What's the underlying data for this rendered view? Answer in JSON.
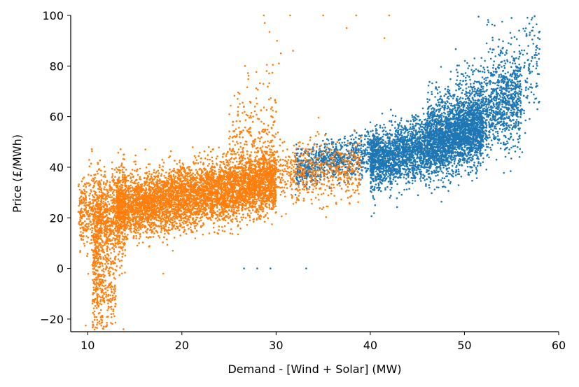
{
  "chart_data": {
    "type": "scatter",
    "title": "",
    "xlabel": "Demand - [Wind + Solar] (MW)",
    "ylabel": "Price (£/MWh)",
    "xlim": [
      8.2,
      60
    ],
    "ylim": [
      -25,
      100
    ],
    "xticks": [
      10,
      20,
      30,
      40,
      50,
      60
    ],
    "yticks": [
      -20,
      0,
      20,
      40,
      60,
      80,
      100
    ],
    "grid": false,
    "legend": "none",
    "series": [
      {
        "color": "#1f77b4",
        "clusters": [
          {
            "n": 3200,
            "x_range": [
              40,
              52
            ],
            "y_center": 48,
            "y_slope": 1.1,
            "y_spread": 6
          },
          {
            "n": 1800,
            "x_range": [
              46,
              56
            ],
            "y_center": 60,
            "y_slope": 1.6,
            "y_spread": 9
          },
          {
            "n": 900,
            "x_range": [
              32,
              41
            ],
            "y_center": 43,
            "y_slope": 0.8,
            "y_spread": 4
          },
          {
            "n": 300,
            "x_range": [
              52,
              58
            ],
            "y_center": 75,
            "y_slope": 3.0,
            "y_spread": 12
          }
        ],
        "points": [
          [
            26.6,
            0
          ],
          [
            28.0,
            0
          ],
          [
            29.4,
            0
          ],
          [
            33.2,
            0
          ],
          [
            51.5,
            99.5
          ],
          [
            52.5,
            98.2
          ],
          [
            54.0,
            97.5
          ],
          [
            55.0,
            99.0
          ],
          [
            53.2,
            96.0
          ],
          [
            56.6,
            92.0
          ],
          [
            57.2,
            90.5
          ],
          [
            55.8,
            94.0
          ],
          [
            57.5,
            67.0
          ],
          [
            56.0,
            62.0
          ]
        ]
      },
      {
        "color": "#ff7f0e",
        "clusters": [
          {
            "n": 5200,
            "x_range": [
              13,
              30
            ],
            "y_center": 29,
            "y_slope": 0.65,
            "y_spread": 6
          },
          {
            "n": 900,
            "x_range": [
              10.5,
              14
            ],
            "y_center": 18,
            "y_slope": 3.0,
            "y_spread": 10
          },
          {
            "n": 350,
            "x_range": [
              9,
              11.5
            ],
            "y_center": 22,
            "y_slope": 0.5,
            "y_spread": 8
          },
          {
            "n": 250,
            "x_range": [
              10.5,
              13
            ],
            "y_center": -10,
            "y_slope": 0.0,
            "y_spread": 7
          },
          {
            "n": 700,
            "x_range": [
              28,
              39
            ],
            "y_center": 38,
            "y_slope": 0.2,
            "y_spread": 6
          },
          {
            "n": 200,
            "x_range": [
              25,
              30
            ],
            "y_center": 55,
            "y_slope": 2.0,
            "y_spread": 10
          }
        ],
        "points": [
          [
            28.7,
            100.0
          ],
          [
            31.5,
            100.0
          ],
          [
            35.0,
            100.0
          ],
          [
            38.5,
            100.0
          ],
          [
            42.0,
            100.0
          ],
          [
            29.3,
            93.5
          ],
          [
            30.1,
            90.0
          ],
          [
            28.8,
            97.0
          ],
          [
            30.5,
            85.0
          ],
          [
            29.0,
            78.0
          ],
          [
            37.5,
            95.0
          ],
          [
            41.5,
            91.0
          ],
          [
            30.3,
            81.0
          ],
          [
            31.8,
            86.0
          ],
          [
            26.7,
            80.0
          ],
          [
            13.8,
            -24.0
          ],
          [
            11.0,
            -23.5
          ],
          [
            9.8,
            -22.5
          ],
          [
            12.5,
            -18.0
          ]
        ]
      }
    ]
  }
}
